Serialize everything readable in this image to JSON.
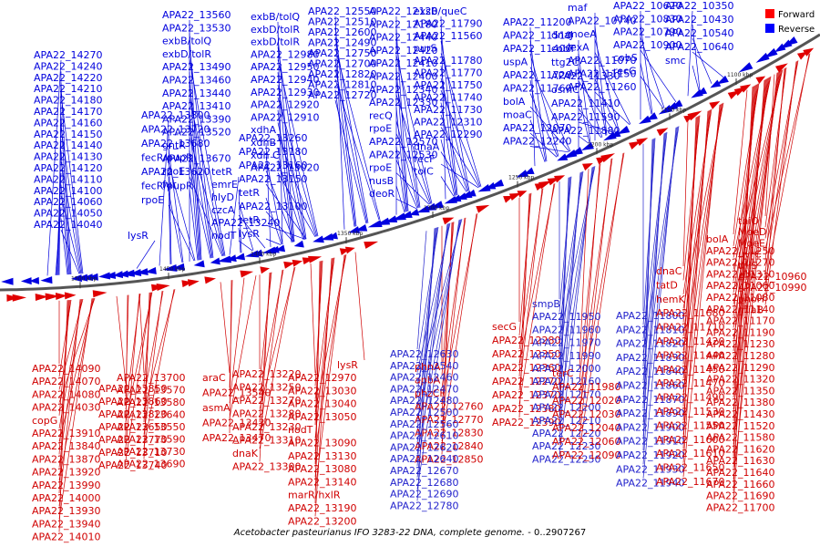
{
  "colors": {
    "forward": "#e00000",
    "reverse": "#0000e0",
    "backbone": "#555555"
  },
  "legend": [
    {
      "label": "Forward",
      "color": "#ff0000"
    },
    {
      "label": "Reverse",
      "color": "#0000ff"
    }
  ],
  "caption": {
    "title": "Acetobacter pasteurianus IFO 3283-22 DNA, complete genome.",
    "range": "- 0..2907267"
  },
  "ticks": [
    "1500 kbp",
    "1450 kbp",
    "1400 kbp",
    "1350 kbp",
    "1300 kbp",
    "1250 kbp",
    "1200 kbp",
    "1150 kbp",
    "1100 kbp"
  ],
  "top_columns": [
    [
      "APA22_14270",
      "APA22_14240",
      "APA22_14220",
      "APA22_14210",
      "APA22_14180",
      "APA22_14170",
      "APA22_14160",
      "APA22_14150",
      "APA22_14140",
      "APA22_14130",
      "APA22_14120",
      "APA22_14110",
      "APA22_14100",
      "APA22_14060",
      "APA22_14050",
      "APA22_14040"
    ],
    [
      "lysR"
    ],
    [
      "APA22_13800",
      "APA22_13720",
      "APA22_13680",
      "fecR/pupR",
      "APA22_13620",
      "fecR/pupR",
      "rpoE"
    ],
    [
      "APA22_13560",
      "APA22_13530",
      "exbB/tolQ",
      "exbD/tolR",
      "APA22_13490",
      "APA22_13460",
      "APA22_13440",
      "APA22_13410",
      "APA22_13390",
      "APA22_13520",
      "gntR",
      "APA22_13670",
      "rpoE",
      "fur"
    ],
    [
      "tetR",
      "emrE",
      "hlyD",
      "czcA",
      "APA22_13240",
      "nodT"
    ],
    [
      "APA22_13260",
      "APA22_13180",
      "APA22_13160",
      "APA22_13150",
      "tetR",
      "APA22_13100",
      "tetR",
      "lysR"
    ],
    [
      "exbB/tolQ",
      "exbD/tolR",
      "exbD/tolR",
      "APA22_12980",
      "APA22_12950",
      "APA22_12940",
      "APA22_12930",
      "APA22_12920",
      "APA22_12910",
      "xdhA",
      "xdhB",
      "xdh C",
      "APA22_13020"
    ],
    [
      "APA22_12550",
      "APA22_12510",
      "APA22_12600",
      "APA22_12490",
      "APA22_12750",
      "APA22_12700",
      "APA22_12820",
      "APA22_12810",
      "APA22_12720"
    ],
    [
      "APA22_12120",
      "APA22_12180",
      "APA22_12440",
      "APA22_12420",
      "APA22_12410",
      "APA22_12400",
      "APA22_12340",
      "APA22_12330",
      "recQ",
      "rpoE",
      "APA22_12570",
      "APA22_12530",
      "rpoE",
      "nusB",
      "deoR"
    ],
    [
      "exsB/queC",
      "APA22_11790",
      "APA22_11560",
      "purS",
      "APA22_11780",
      "APA22_11770",
      "APA22_11750",
      "APA22_11740",
      "APA22_11730",
      "APA22_12310",
      "APA22_12290",
      "dnaA",
      "recF",
      "tolC"
    ],
    [
      "APA22_11200",
      "APA22_11510",
      "APA22_11400",
      "uspA",
      "APA22_11720",
      "APA22_11760",
      "bolA",
      "moaC",
      "APA22_12070",
      "APA22_12240"
    ],
    [
      "dnaJ",
      "cobT",
      "ttg2C",
      "APA22_11330",
      "osmC",
      "APA22_11410",
      "APA22_11590",
      "APA22_11880"
    ],
    [
      "maf",
      "APA22_10740",
      "moeA",
      "lexA",
      "APA22_11070",
      "APA22_11150",
      "APA22_11260"
    ],
    [
      "APA22_10620",
      "APA22_10830",
      "APA22_10790",
      "APA22_10900",
      "cobS",
      "recG"
    ],
    [
      "APA22_10350",
      "APA22_10430",
      "APA22_10540",
      "APA22_10640",
      "smc"
    ]
  ],
  "bottom_left_columns": [
    [
      "APA22_14090",
      "APA22_14070",
      "APA22_14080",
      "APA22_14030",
      "copG",
      "APA22_13910",
      "APA22_13840",
      "APA22_13870",
      "APA22_13920",
      "APA22_13990",
      "APA22_14000",
      "APA22_13930",
      "APA22_13940",
      "APA22_14010"
    ],
    [
      "APA22_13850",
      "APA22_13860",
      "APA22_13820",
      "APA22_13650",
      "APA22_13770",
      "APA22_13710",
      "APA22_13740"
    ],
    [
      "APA22_13700",
      "APA22_13570",
      "APA22_13580",
      "APA22_13640",
      "APA22_13550",
      "APA22_13590",
      "APA22_13730",
      "APA22_13690"
    ],
    [
      "araC",
      "APA22_13540",
      "asmA",
      "APA22_13430",
      "APA22_13470"
    ],
    [
      "APA22_13220",
      "APA22_13250",
      "APA22_13270",
      "APA22_13280",
      "APA22_13230",
      "APA22_13310",
      "dnaK",
      "APA22_13300"
    ],
    [
      "APA22_12970",
      "APA22_13030",
      "APA22_13040",
      "APA22_13050",
      "nodT",
      "APA22_13090",
      "APA22_13130",
      "APA22_13080",
      "APA22_13140",
      "marR/hxlR",
      "APA22_13190",
      "APA22_13200"
    ],
    [
      "lysR"
    ]
  ],
  "bottom_mid_columns": [
    [
      "phnA",
      "apbA",
      "phzCF",
      "APA22_12760",
      "APA22_12770",
      "APA22_12830",
      "APA22_12840",
      "APA22_12850"
    ],
    [
      "APA22_12630",
      "APA22_12540",
      "APA22_12460",
      "APA22_12470",
      "APA22_12480",
      "APA22_12500",
      "APA22_12560",
      "APA22_12610",
      "APA22_12620",
      "APA22_12640",
      "APA22_12670",
      "APA22_12680",
      "APA22_12690",
      "APA22_12780"
    ],
    [
      "secG",
      "APA22_12280",
      "APA22_12350",
      "APA22_12360",
      "APA22_12270",
      "APA22_12370",
      "APA22_12380",
      "APA22_12390"
    ],
    [
      "smpB",
      "APA22_11950",
      "APA22_11960",
      "APA22_11970",
      "APA22_11990",
      "APA22_12000",
      "APA22_12160",
      "APA22_12170",
      "APA22_12200",
      "APA22_12210",
      "APA22_12220",
      "APA22_12230",
      "APA22_12250"
    ],
    [
      "terC",
      "APA22_11980",
      "APA22_12020",
      "APA22_12030",
      "APA22_12040",
      "APA22_12060",
      "APA22_12090"
    ]
  ],
  "bottom_right_columns": [
    [
      "APA22_11800",
      "APA22_11810",
      "APA22_11820",
      "APA22_11830",
      "APA22_11840",
      "APA22_11860",
      "APA22_11870",
      "APA22_11890",
      "APA22_11900",
      "APA22_11910",
      "APA22_11920",
      "APA22_11930",
      "APA22_11940"
    ],
    [
      "dnaC",
      "tatD",
      "hemK",
      "APA22_11680",
      "APA22_11710",
      "APA22_11420",
      "APA22_11440",
      "APA22_11450",
      "APA22_11470",
      "APA22_11490",
      "APA22_11530",
      "APA22_11550",
      "APA22_11600",
      "APA22_11610",
      "APA22_11650",
      "APA22_11670"
    ],
    [
      "bolA",
      "APA22_11250",
      "APA22_11270",
      "APA22_11310",
      "APA22_11060",
      "APA22_11080",
      "APA22_11140",
      "APA22_11170",
      "APA22_11190",
      "APA22_11230",
      "APA22_11280",
      "APA22_11290",
      "APA22_11320",
      "APA22_11350",
      "APA22_11380",
      "APA22_11430",
      "APA22_11520",
      "APA22_11580",
      "APA22_11620",
      "APA22_11630",
      "APA22_11640",
      "APA22_11660",
      "APA22_11690",
      "APA22_11700"
    ],
    [
      "thiO",
      "MoeD",
      "MoeE",
      "uvrC",
      "thiS",
      "APA22_10960",
      "APA22_10990",
      "phoH",
      "miaB"
    ]
  ]
}
